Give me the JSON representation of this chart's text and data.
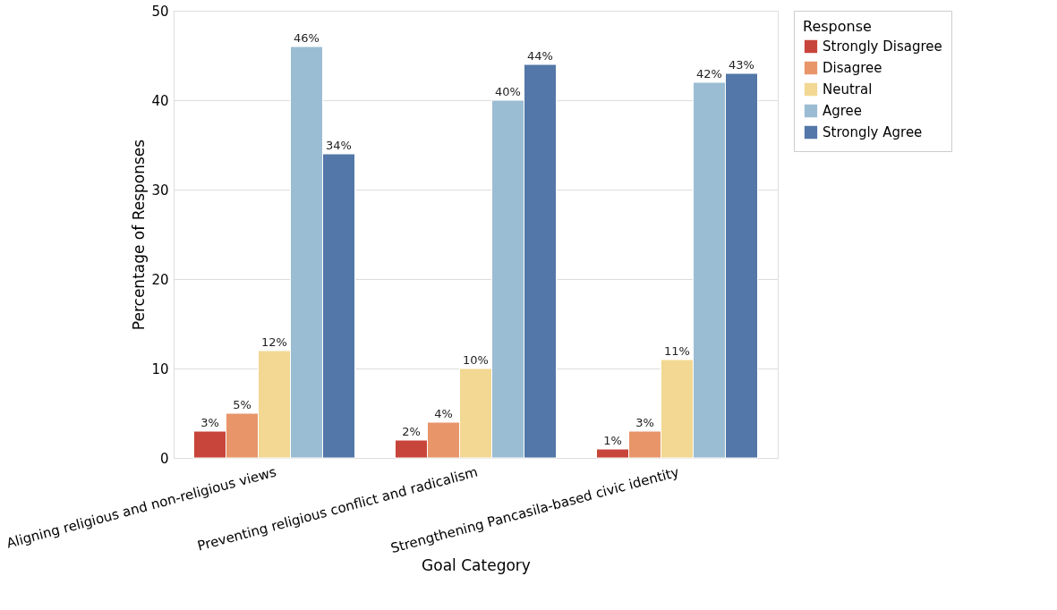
{
  "chart_data": {
    "type": "bar",
    "xlabel": "Goal Category",
    "ylabel": "Percentage of Responses",
    "legend_title": "Response",
    "categories": [
      "Aligning religious and non-religious views",
      "Preventing religious conflict and radicalism",
      "Strengthening Pancasila-based civic identity"
    ],
    "series": [
      {
        "name": "Strongly Disagree",
        "color": "#c8453b",
        "values": [
          3,
          2,
          1
        ],
        "value_labels": [
          "3%",
          "2%",
          "1%"
        ]
      },
      {
        "name": "Disagree",
        "color": "#e8956a",
        "values": [
          5,
          4,
          3
        ],
        "value_labels": [
          "5%",
          "4%",
          "3%"
        ]
      },
      {
        "name": "Neutral",
        "color": "#f2d893",
        "values": [
          12,
          10,
          11
        ],
        "value_labels": [
          "12%",
          "10%",
          "11%"
        ]
      },
      {
        "name": "Agree",
        "color": "#9bbdd3",
        "values": [
          46,
          40,
          42
        ],
        "value_labels": [
          "46%",
          "40%",
          "42%"
        ]
      },
      {
        "name": "Strongly Agree",
        "color": "#5277a8",
        "values": [
          34,
          44,
          43
        ],
        "value_labels": [
          "34%",
          "44%",
          "43%"
        ]
      }
    ],
    "ylim": [
      0,
      50
    ],
    "yticks": [
      0,
      10,
      20,
      30,
      40,
      50
    ],
    "grid": "y",
    "legend": "top right"
  }
}
